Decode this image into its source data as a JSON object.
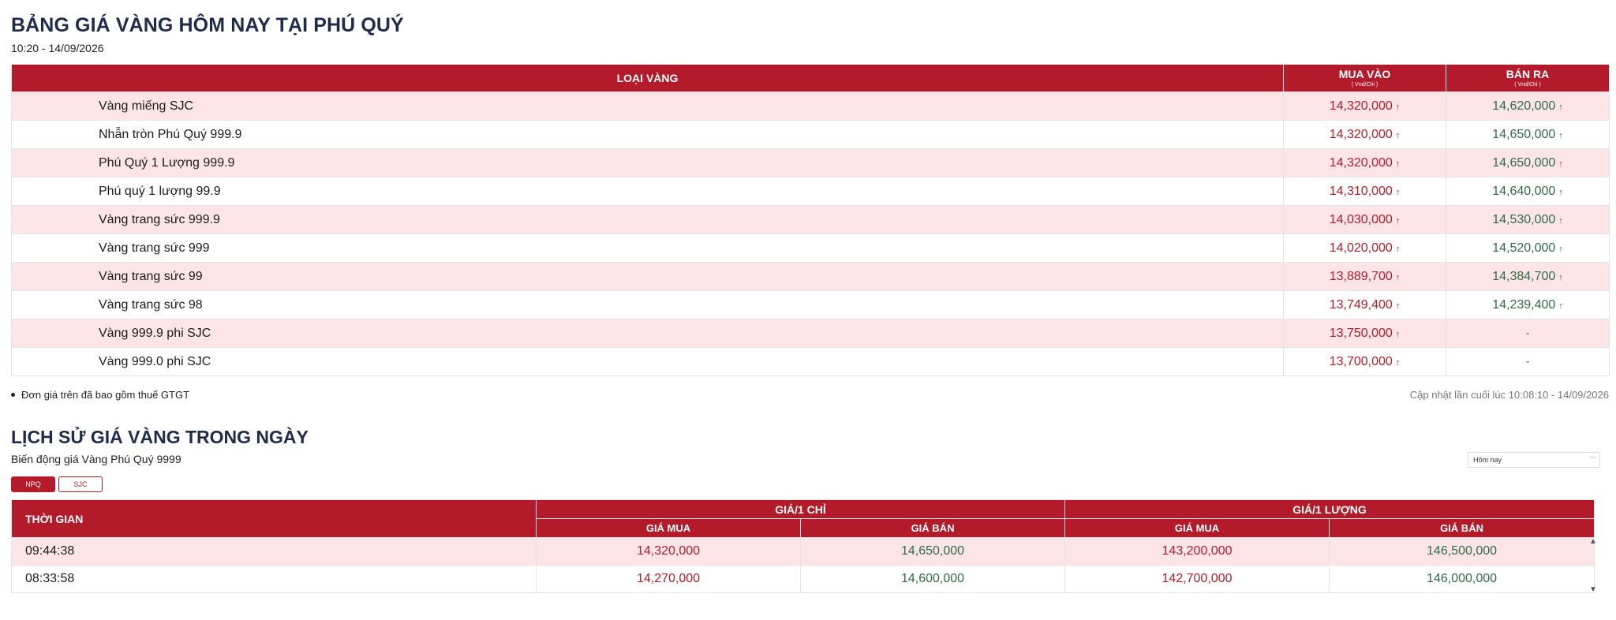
{
  "header": {
    "title": "BẢNG GIÁ VÀNG HÔM NAY TẠI PHÚ QUÝ",
    "datetime": "10:20 - 14/09/2026"
  },
  "price_table": {
    "columns": {
      "type": "LOẠI VÀNG",
      "buy": "MUA VÀO",
      "buy_unit": "( Vnd/Chỉ )",
      "sell": "BÁN RA",
      "sell_unit": "( Vnd/Chỉ )"
    },
    "arrow_glyph": "↑",
    "rows": [
      {
        "name": "Vàng miếng SJC",
        "buy": "14,320,000",
        "sell": "14,620,000"
      },
      {
        "name": "Nhẫn tròn Phú Quý 999.9",
        "buy": "14,320,000",
        "sell": "14,650,000"
      },
      {
        "name": "Phú Quý 1 Lượng 999.9",
        "buy": "14,320,000",
        "sell": "14,650,000"
      },
      {
        "name": "Phú quý 1 lượng 99.9",
        "buy": "14,310,000",
        "sell": "14,640,000"
      },
      {
        "name": "Vàng trang sức 999.9",
        "buy": "14,030,000",
        "sell": "14,530,000"
      },
      {
        "name": "Vàng trang sức 999",
        "buy": "14,020,000",
        "sell": "14,520,000"
      },
      {
        "name": "Vàng trang sức 99",
        "buy": "13,889,700",
        "sell": "14,384,700"
      },
      {
        "name": "Vàng trang sức 98",
        "buy": "13,749,400",
        "sell": "14,239,400"
      },
      {
        "name": "Vàng 999.9 phi SJC",
        "buy": "13,750,000",
        "sell": "-"
      },
      {
        "name": "Vàng 999.0 phi SJC",
        "buy": "13,700,000",
        "sell": "-"
      }
    ]
  },
  "notes": {
    "vat": "Đơn giá trên đã bao gồm thuế GTGT",
    "updated": "Cập nhật lần cuối lúc 10:08:10 - 14/09/2026"
  },
  "history": {
    "title": "LỊCH SỬ GIÁ VÀNG TRONG NGÀY",
    "subtitle": "Biến động giá Vàng Phú Quý 9999",
    "range_select": "Hôm nay",
    "tabs": [
      "NPQ",
      "SJC"
    ],
    "active_tab": "NPQ",
    "columns": {
      "time": "THỜI GIAN",
      "per_chi": "GIÁ/1 CHỈ",
      "per_luong": "GIÁ/1 LƯỢNG",
      "buy": "GIÁ MUA",
      "sell": "GIÁ BÁN"
    },
    "rows": [
      {
        "time": "09:44:38",
        "chi_buy": "14,320,000",
        "chi_sell": "14,650,000",
        "luong_buy": "143,200,000",
        "luong_sell": "146,500,000"
      },
      {
        "time": "08:33:58",
        "chi_buy": "14,270,000",
        "chi_sell": "14,600,000",
        "luong_buy": "142,700,000",
        "luong_sell": "146,000,000"
      }
    ]
  },
  "colors": {
    "accent": "#b31b2a",
    "row_alt": "#fde4e6",
    "sell_green": "#2e6b47",
    "title_navy": "#1f2b4a"
  },
  "icons": {
    "up_arrow": "arrow-up-icon",
    "chevron": "chevron-down-icon",
    "scroll_up": "scroll-up-icon",
    "scroll_down": "scroll-down-icon"
  }
}
